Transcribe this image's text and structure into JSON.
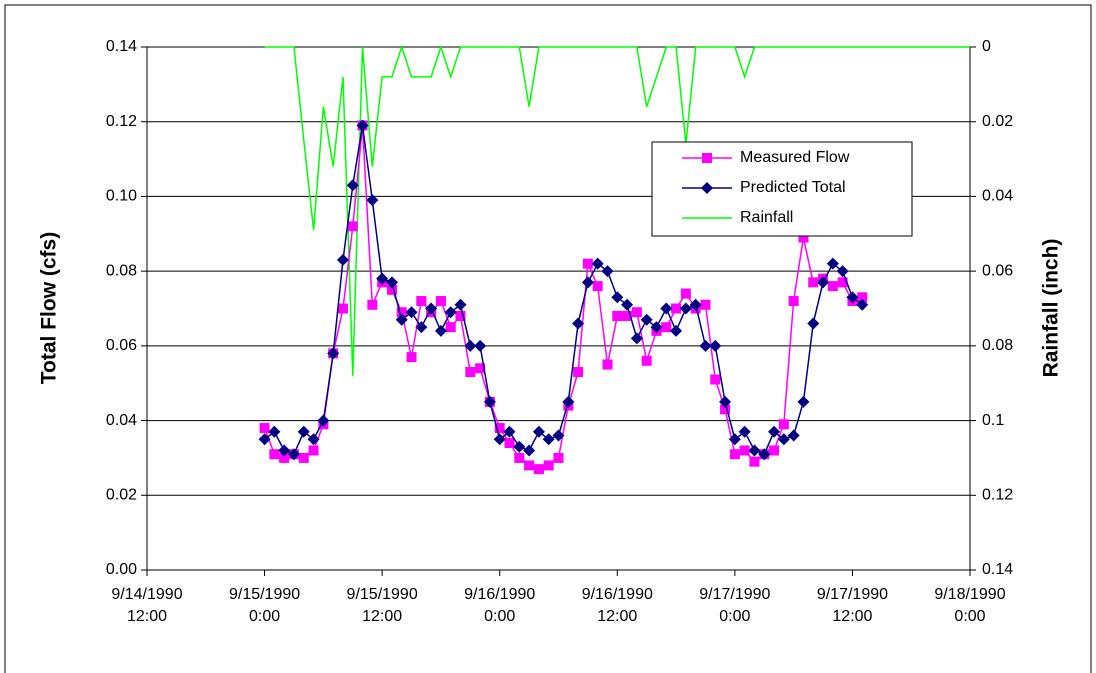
{
  "chart_data": {
    "type": "line",
    "ylabel": "Total Flow (cfs)",
    "y2label": "Rainfall (inch)",
    "x": [
      "9/15/1990 0:00",
      "9/15/1990 1:00",
      "9/15/1990 2:00",
      "9/15/1990 3:00",
      "9/15/1990 4:00",
      "9/15/1990 5:00",
      "9/15/1990 6:00",
      "9/15/1990 7:00",
      "9/15/1990 8:00",
      "9/15/1990 9:00",
      "9/15/1990 10:00",
      "9/15/1990 11:00",
      "9/15/1990 12:00",
      "9/15/1990 13:00",
      "9/15/1990 14:00",
      "9/15/1990 15:00",
      "9/15/1990 16:00",
      "9/15/1990 17:00",
      "9/15/1990 18:00",
      "9/15/1990 19:00",
      "9/15/1990 20:00",
      "9/15/1990 21:00",
      "9/15/1990 22:00",
      "9/15/1990 23:00",
      "9/16/1990 0:00",
      "9/16/1990 1:00",
      "9/16/1990 2:00",
      "9/16/1990 3:00",
      "9/16/1990 4:00",
      "9/16/1990 5:00",
      "9/16/1990 6:00",
      "9/16/1990 7:00",
      "9/16/1990 8:00",
      "9/16/1990 9:00",
      "9/16/1990 10:00",
      "9/16/1990 11:00",
      "9/16/1990 12:00",
      "9/16/1990 13:00",
      "9/16/1990 14:00",
      "9/16/1990 15:00",
      "9/16/1990 16:00",
      "9/16/1990 17:00",
      "9/16/1990 18:00",
      "9/16/1990 19:00",
      "9/16/1990 20:00",
      "9/16/1990 21:00",
      "9/16/1990 22:00",
      "9/16/1990 23:00",
      "9/17/1990 0:00",
      "9/17/1990 1:00",
      "9/17/1990 2:00",
      "9/17/1990 3:00",
      "9/17/1990 4:00",
      "9/17/1990 5:00",
      "9/17/1990 6:00",
      "9/17/1990 7:00",
      "9/17/1990 8:00",
      "9/17/1990 9:00",
      "9/17/1990 10:00",
      "9/17/1990 11:00",
      "9/17/1990 12:00",
      "9/17/1990 13:00",
      "9/17/1990 14:00",
      "9/17/1990 15:00",
      "9/17/1990 16:00",
      "9/17/1990 17:00",
      "9/17/1990 18:00",
      "9/17/1990 19:00",
      "9/17/1990 20:00",
      "9/17/1990 21:00",
      "9/17/1990 22:00",
      "9/17/1990 23:00",
      "9/18/1990 0:00"
    ],
    "series": [
      {
        "name": "Measured Flow",
        "color": "#ff00ff",
        "marker": "square",
        "values": [
          0.038,
          0.031,
          0.03,
          0.031,
          0.03,
          0.032,
          0.039,
          0.058,
          0.07,
          0.092,
          0.119,
          0.071,
          0.077,
          0.075,
          0.069,
          0.057,
          0.072,
          0.069,
          0.072,
          0.065,
          0.068,
          0.053,
          0.054,
          0.045,
          0.038,
          0.034,
          0.03,
          0.028,
          0.027,
          0.028,
          0.03,
          0.044,
          0.053,
          0.082,
          0.076,
          0.055,
          0.068,
          0.068,
          0.069,
          0.056,
          0.064,
          0.065,
          0.07,
          0.074,
          0.07,
          0.071,
          0.051,
          0.043,
          0.031,
          0.032,
          0.029,
          0.031,
          0.032,
          0.039,
          0.072,
          0.089,
          0.077,
          0.078,
          0.076,
          0.077,
          0.072,
          0.073,
          null,
          null,
          null,
          null,
          null,
          null,
          null,
          null,
          null,
          null,
          null
        ]
      },
      {
        "name": "Predicted Total",
        "color": "#000080",
        "marker": "diamond",
        "values": [
          0.035,
          0.037,
          0.032,
          0.031,
          0.037,
          0.035,
          0.04,
          0.058,
          0.083,
          0.103,
          0.119,
          0.099,
          0.078,
          0.077,
          0.067,
          0.069,
          0.065,
          0.07,
          0.064,
          0.069,
          0.071,
          0.06,
          0.06,
          0.045,
          0.035,
          0.037,
          0.033,
          0.032,
          0.037,
          0.035,
          0.036,
          0.045,
          0.066,
          0.077,
          0.082,
          0.08,
          0.073,
          0.071,
          0.062,
          0.067,
          0.065,
          0.07,
          0.064,
          0.07,
          0.071,
          0.06,
          0.06,
          0.045,
          0.035,
          0.037,
          0.032,
          0.031,
          0.037,
          0.035,
          0.036,
          0.045,
          0.066,
          0.077,
          0.082,
          0.08,
          0.073,
          0.071,
          null,
          null,
          null,
          null,
          null,
          null,
          null,
          null,
          null,
          null,
          null
        ]
      },
      {
        "name": "Rainfall",
        "color": "#00ff00",
        "marker": "none",
        "axis": "y2",
        "values": [
          0,
          0,
          0,
          0,
          0.025,
          0.049,
          0.016,
          0.032,
          0.008,
          0.088,
          0,
          0.032,
          0.008,
          0.008,
          0,
          0.008,
          0.008,
          0.008,
          0,
          0.008,
          0,
          0,
          0,
          0,
          0,
          0,
          0,
          0.016,
          0,
          0,
          0,
          0,
          0,
          0,
          0,
          0,
          0,
          0,
          0,
          0.016,
          0.008,
          0,
          0,
          0.026,
          0,
          0,
          0,
          0,
          0,
          0.008,
          0,
          0,
          0,
          0,
          0,
          0,
          0,
          0,
          0,
          0,
          0,
          0,
          0,
          0,
          0,
          0,
          0,
          0,
          0,
          0,
          0,
          0,
          0
        ]
      }
    ],
    "xlim": [
      "9/14/1990 12:00",
      "9/18/1990 0:00"
    ],
    "xticks": [
      {
        "value": "9/14/1990 12:00",
        "label": "9/14/1990\n12:00"
      },
      {
        "value": "9/15/1990 0:00",
        "label": "9/15/1990\n0:00"
      },
      {
        "value": "9/15/1990 12:00",
        "label": "9/15/1990\n12:00"
      },
      {
        "value": "9/16/1990 0:00",
        "label": "9/16/1990\n0:00"
      },
      {
        "value": "9/16/1990 12:00",
        "label": "9/16/1990\n12:00"
      },
      {
        "value": "9/17/1990 0:00",
        "label": "9/17/1990\n0:00"
      },
      {
        "value": "9/17/1990 12:00",
        "label": "9/17/1990\n12:00"
      },
      {
        "value": "9/18/1990 0:00",
        "label": "9/18/1990\n0:00"
      }
    ],
    "ylim": [
      0,
      0.14
    ],
    "yticks": [
      {
        "value": 0,
        "label": "0.00"
      },
      {
        "value": 0.02,
        "label": "0.02"
      },
      {
        "value": 0.04,
        "label": "0.04"
      },
      {
        "value": 0.06,
        "label": "0.06"
      },
      {
        "value": 0.08,
        "label": "0.08"
      },
      {
        "value": 0.1,
        "label": "0.10"
      },
      {
        "value": 0.12,
        "label": "0.12"
      },
      {
        "value": 0.14,
        "label": "0.14"
      }
    ],
    "y2lim": [
      0,
      0.14
    ],
    "y2_reversed": true,
    "y2ticks": [
      0,
      0.02,
      0.04,
      0.06,
      0.08,
      0.1,
      0.12,
      0.14
    ],
    "grid": true,
    "legend": "upper right"
  }
}
